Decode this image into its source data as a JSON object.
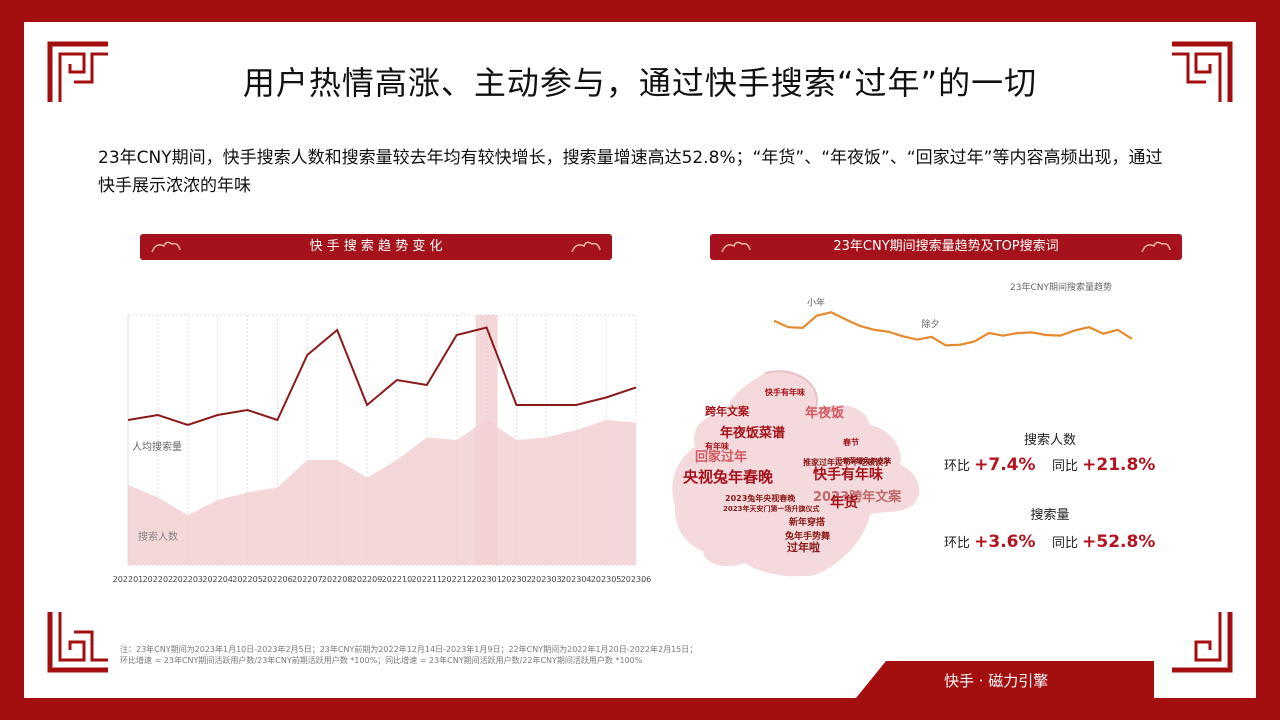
{
  "title": "用户热情高涨、主动参与，通过快手搜索“过年”的一切",
  "intro": "23年CNY期间，快手搜索人数和搜索量较去年均有较快增长，搜索量增速高达52.8%；“年货”、“年夜饭”、“回家过年”等内容高频出现，通过快手展示浓浓的年味",
  "left_banner": "快 手 搜 索 趋 势 变 化",
  "right_banner": "23年CNY期间搜索量趋势及TOP搜索词",
  "stats": {
    "users_label": "搜索人数",
    "users_mom_label": "环比",
    "users_mom": "+7.4%",
    "users_yoy_label": "同比",
    "users_yoy": "+21.8%",
    "volume_label": "搜索量",
    "volume_mom_label": "环比",
    "volume_mom": "+3.6%",
    "volume_yoy_label": "同比",
    "volume_yoy": "+52.8%"
  },
  "wordcloud_words": [
    "跨年文案",
    "年夜饭菜谱",
    "年夜饭",
    "回家过年",
    "央视兔年春晚",
    "快手有年味",
    "2023跨年文案",
    "年货",
    "新年穿搭",
    "兔年手势舞",
    "过年啦",
    "推家过年过节不吃顿饺子",
    "王者荣耀兔年皮肤",
    "2023兔年央视春晚",
    "2023年天安门第一场升旗仪式",
    "快手有年味",
    "春节",
    "有年味"
  ],
  "note_line1": "注：23年CNY期间为2023年1月10日-2023年2月5日；23年CNY前期为2022年12月14日-2023年1月9日；22年CNY期间为2022年1月20日-2022年2月15日；",
  "note_line2": "环比增速 = 23年CNY期间活跃用户数/23年CNY前期活跃用户数 *100%；同比增速 = 23年CNY期间活跃用户数/22年CNY期间活跃用户数 *100%",
  "brand": "快手 · 磁力引擎",
  "colors": {
    "brand_red": "#a30f0f",
    "accent_red": "#b3141f",
    "line_dark": "#8a1a1a",
    "area_pink": "#f2d0d2",
    "trend_orange": "#e58a2e"
  },
  "chart_data": [
    {
      "type": "area",
      "categories": [
        "202201",
        "202202",
        "202203",
        "202204",
        "202205",
        "202206",
        "202207",
        "202208",
        "202209",
        "202210",
        "202211",
        "202212",
        "202301",
        "202302",
        "202303",
        "202304",
        "202305",
        "202306"
      ],
      "highlight_category": "202301",
      "series": [
        {
          "name": "人均搜索量",
          "kind": "line",
          "values": [
            58,
            60,
            56,
            60,
            62,
            58,
            84,
            94,
            64,
            74,
            72,
            92,
            95,
            64,
            64,
            64,
            67,
            71
          ]
        },
        {
          "name": "搜索人数",
          "kind": "area",
          "values": [
            32,
            27,
            20,
            26,
            29,
            31,
            42,
            42,
            35,
            42,
            51,
            50,
            58,
            50,
            51,
            54,
            58,
            57
          ]
        }
      ],
      "ylim": [
        0,
        100
      ],
      "grid": true
    },
    {
      "type": "line",
      "title": "23年CNY期间搜索量趋势",
      "annotations": [
        {
          "label": "小年",
          "index": 3
        },
        {
          "label": "除夕",
          "index": 11
        }
      ],
      "values": [
        62,
        52,
        51,
        70,
        75,
        64,
        54,
        48,
        45,
        38,
        33,
        37,
        24,
        25,
        30,
        43,
        39,
        43,
        44,
        40,
        39,
        47,
        52,
        42,
        48,
        34
      ]
    }
  ]
}
